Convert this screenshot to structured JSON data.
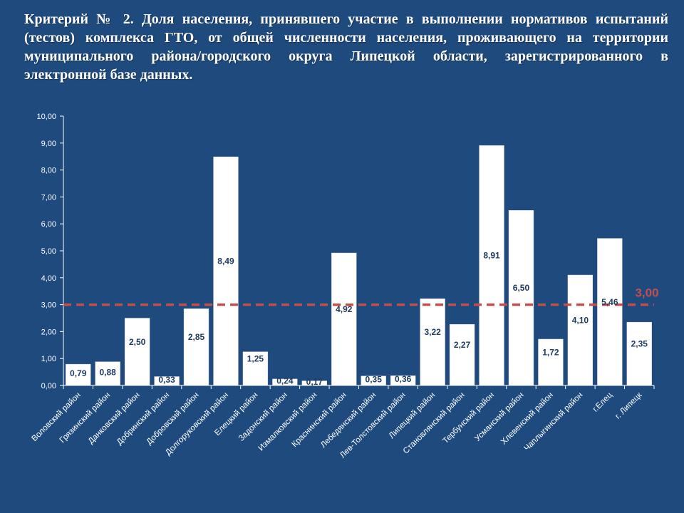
{
  "title": "Критерий № 2. Доля населения, принявшего участие в выполнении нормативов испытаний (тестов) комплекса ГТО, от общей численности населения, проживающего на территории муниципального района/городского округа Липецкой области, зарегистрированного в электронной базе данных.",
  "colors": {
    "background": "#1f4a7e",
    "bar": "#ffffff",
    "bar_label": "#1f3a5f",
    "axis_text": "#ffffff",
    "threshold": "#c0504d"
  },
  "chart_data": {
    "type": "bar",
    "categories": [
      "Воловский район",
      "Грязинский район",
      "Данковский район",
      "Добринский район",
      "Добровский район",
      "Долгоруковский район",
      "Елецкий район",
      "Задонский район",
      "Измалковский район",
      "Краснинский район",
      "Лебедянский район",
      "Лев-Толстовский район",
      "Липецкий район",
      "Становлянский район",
      "Тербунский район",
      "Усманский район",
      "Хлевенский район",
      "Чаплыгинский район",
      "г.Елец",
      "г. Липецк"
    ],
    "values": [
      0.79,
      0.88,
      2.5,
      0.33,
      2.85,
      8.49,
      1.25,
      0.24,
      0.17,
      4.92,
      0.35,
      0.36,
      3.22,
      2.27,
      8.91,
      6.5,
      1.72,
      4.1,
      5.46,
      2.35
    ],
    "value_labels": [
      "0,79",
      "0,88",
      "2,50",
      "0,33",
      "2,85",
      "8,49",
      "1,25",
      "0,24",
      "0,17",
      "4,92",
      "0,35",
      "0,36",
      "3,22",
      "2,27",
      "8,91",
      "6,50",
      "1,72",
      "4,10",
      "5,46",
      "2,35"
    ],
    "ylim": [
      0,
      10
    ],
    "y_ticks": [
      0,
      1,
      2,
      3,
      4,
      5,
      6,
      7,
      8,
      9,
      10
    ],
    "y_tick_labels": [
      "0,00",
      "1,00",
      "2,00",
      "3,00",
      "4,00",
      "5,00",
      "6,00",
      "7,00",
      "8,00",
      "9,00",
      "10,00"
    ],
    "threshold": {
      "value": 3.0,
      "label": "3,00"
    },
    "grid": false,
    "xlabel": "",
    "ylabel": ""
  }
}
